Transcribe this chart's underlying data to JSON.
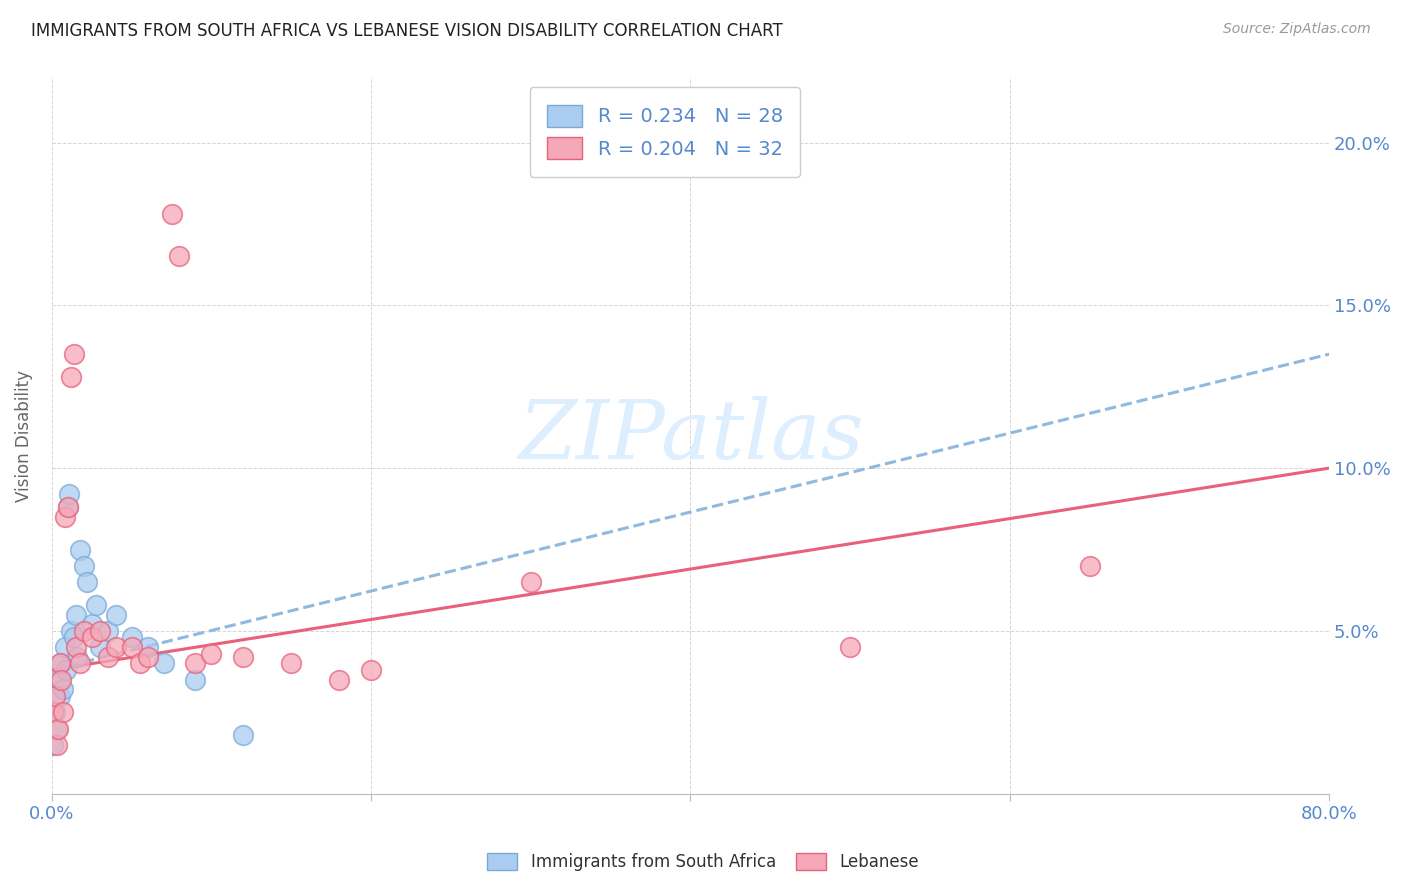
{
  "title": "IMMIGRANTS FROM SOUTH AFRICA VS LEBANESE VISION DISABILITY CORRELATION CHART",
  "source": "Source: ZipAtlas.com",
  "ylabel": "Vision Disability",
  "r_blue": 0.234,
  "n_blue": 28,
  "r_pink": 0.204,
  "n_pink": 32,
  "legend_label_blue": "Immigrants from South Africa",
  "legend_label_pink": "Lebanese",
  "blue_color": "#aaccf0",
  "pink_color": "#f5a8b8",
  "blue_edge_color": "#7aaad8",
  "pink_edge_color": "#e8607a",
  "blue_line_color": "#90b8e0",
  "pink_line_color": "#e8607a",
  "axis_label_color": "#5588cc",
  "watermark_color": "#ddeeff",
  "blue_points_x": [
    0.1,
    0.2,
    0.3,
    0.4,
    0.5,
    0.6,
    0.7,
    0.8,
    0.9,
    1.0,
    1.1,
    1.2,
    1.4,
    1.5,
    1.6,
    1.8,
    2.0,
    2.2,
    2.5,
    2.8,
    3.0,
    3.5,
    4.0,
    5.0,
    6.0,
    7.0,
    9.0,
    12.0
  ],
  "blue_points_y": [
    1.5,
    2.5,
    2.0,
    3.5,
    3.0,
    4.0,
    3.2,
    4.5,
    3.8,
    8.8,
    9.2,
    5.0,
    4.8,
    5.5,
    4.2,
    7.5,
    7.0,
    6.5,
    5.2,
    5.8,
    4.5,
    5.0,
    5.5,
    4.8,
    4.5,
    4.0,
    3.5,
    1.8
  ],
  "pink_points_x": [
    0.1,
    0.2,
    0.3,
    0.4,
    0.5,
    0.6,
    0.7,
    0.8,
    1.0,
    1.2,
    1.4,
    1.5,
    1.8,
    2.0,
    2.5,
    3.0,
    3.5,
    4.0,
    5.0,
    5.5,
    6.0,
    7.5,
    8.0,
    9.0,
    10.0,
    12.0,
    15.0,
    18.0,
    20.0,
    30.0,
    50.0,
    65.0
  ],
  "pink_points_y": [
    2.5,
    3.0,
    1.5,
    2.0,
    4.0,
    3.5,
    2.5,
    8.5,
    8.8,
    12.8,
    13.5,
    4.5,
    4.0,
    5.0,
    4.8,
    5.0,
    4.2,
    4.5,
    4.5,
    4.0,
    4.2,
    17.8,
    16.5,
    4.0,
    4.3,
    4.2,
    4.0,
    3.5,
    3.8,
    6.5,
    4.5,
    7.0
  ],
  "blue_trendline_x": [
    0,
    80
  ],
  "blue_trendline_y": [
    3.8,
    13.5
  ],
  "pink_trendline_x": [
    0,
    80
  ],
  "pink_trendline_y": [
    3.8,
    10.0
  ],
  "xlim": [
    0,
    80
  ],
  "ylim": [
    0,
    22
  ],
  "yticks": [
    0,
    5.0,
    10.0,
    15.0,
    20.0
  ],
  "ytick_labels": [
    "",
    "5.0%",
    "10.0%",
    "15.0%",
    "20.0%"
  ],
  "xticks": [
    0,
    20,
    40,
    60,
    80
  ],
  "xtick_labels": [
    "0.0%",
    "",
    "",
    "",
    "80.0%"
  ]
}
